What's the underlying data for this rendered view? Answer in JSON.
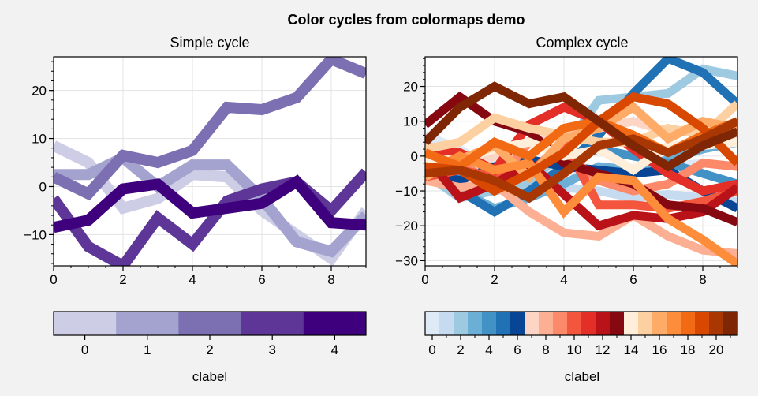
{
  "figure": {
    "suptitle": "Color cycles from colormaps demo",
    "background": "#f2f2f2"
  },
  "chart_data": [
    {
      "type": "line",
      "title": "Simple cycle",
      "xlabel": "",
      "ylabel": "",
      "xlim": [
        0,
        9
      ],
      "ylim": [
        -16.5,
        27
      ],
      "xticks": [
        0,
        2,
        4,
        6,
        8
      ],
      "yticks": [
        -10,
        0,
        10,
        20
      ],
      "ytick_labels": [
        "−10",
        "0",
        "10",
        "20"
      ],
      "grid": true,
      "x": [
        0,
        1,
        2,
        3,
        4,
        5,
        6,
        7,
        8,
        9
      ],
      "series": [
        {
          "color": "#cdcde5",
          "values": [
            8.5,
            5,
            -4.5,
            -2.5,
            2.5,
            2,
            -5,
            -10,
            -15,
            -5
          ]
        },
        {
          "color": "#a4a2cf",
          "values": [
            2.5,
            2.5,
            6,
            0,
            4.5,
            4.5,
            -2.5,
            -11.5,
            -13.5,
            -6
          ]
        },
        {
          "color": "#7c70b3",
          "values": [
            2,
            -1.5,
            6.5,
            5,
            7.5,
            16.5,
            16,
            18.5,
            26.5,
            23.5
          ]
        },
        {
          "color": "#5e3698",
          "values": [
            -2.5,
            -12.5,
            -16.5,
            -6.5,
            -12,
            -3,
            -0.5,
            1,
            -5,
            3
          ]
        },
        {
          "color": "#3f007d",
          "values": [
            -8.5,
            -7,
            -0.5,
            0.5,
            -5.5,
            -4.5,
            -3.5,
            1,
            -7.5,
            -8
          ]
        }
      ],
      "colorbar": {
        "label": "clabel",
        "ticks": [
          "0",
          "1",
          "2",
          "3",
          "4"
        ],
        "colors": [
          "#cdcde5",
          "#a4a2cf",
          "#7c70b3",
          "#5e3698",
          "#3f007d"
        ]
      }
    },
    {
      "type": "line",
      "title": "Complex cycle",
      "xlabel": "",
      "ylabel": "",
      "xlim": [
        0,
        9
      ],
      "ylim": [
        -31.5,
        28.5
      ],
      "xticks": [
        0,
        2,
        4,
        6,
        8
      ],
      "yticks": [
        -30,
        -20,
        -10,
        0,
        10,
        20
      ],
      "ytick_labels": [
        "−30",
        "−20",
        "−10",
        "0",
        "10",
        "20"
      ],
      "grid": true,
      "x": [
        0,
        1,
        2,
        3,
        4,
        5,
        6,
        7,
        8,
        9
      ],
      "series": [
        {
          "color": "#deebf7",
          "values": [
            6,
            2,
            -4,
            -6,
            -4,
            -6,
            -5,
            -3,
            -2,
            -3
          ]
        },
        {
          "color": "#c6dbef",
          "values": [
            3,
            1,
            -3,
            -5,
            -9,
            -10,
            -12,
            -11,
            -12,
            -13
          ]
        },
        {
          "color": "#9ecae1",
          "values": [
            -5,
            -12,
            -10,
            -8,
            2,
            16,
            17,
            18,
            25,
            23
          ]
        },
        {
          "color": "#6baed6",
          "values": [
            -2,
            -10,
            -15,
            -12,
            -8,
            -3,
            -4,
            -1,
            2,
            4
          ]
        },
        {
          "color": "#4292c6",
          "values": [
            -4,
            -5,
            -7,
            -3,
            -1,
            2,
            0,
            -2,
            -5,
            -8
          ]
        },
        {
          "color": "#2171b5",
          "values": [
            0,
            -10,
            -16,
            -10,
            -3,
            6,
            18,
            28,
            24,
            15
          ]
        },
        {
          "color": "#084594",
          "values": [
            -5,
            -7,
            -3,
            -1,
            -3,
            -4,
            -5,
            -4,
            -10,
            -15
          ]
        },
        {
          "color": "#fdd5c4",
          "values": [
            -7,
            -3,
            0,
            4,
            6,
            8,
            10,
            7,
            8,
            5
          ]
        },
        {
          "color": "#fcaf93",
          "values": [
            -7,
            -9,
            -8,
            -16,
            -22,
            -23,
            -17,
            -23,
            -27,
            -28
          ]
        },
        {
          "color": "#fc8a6a",
          "values": [
            -3,
            -2,
            -8,
            4,
            1,
            -7,
            -10,
            -8,
            -2,
            -3
          ]
        },
        {
          "color": "#f4553d",
          "values": [
            -6,
            -4,
            -6,
            -5,
            4,
            -14,
            -14,
            -15,
            -13,
            -10
          ]
        },
        {
          "color": "#e32f27",
          "values": [
            2,
            1,
            -4,
            9,
            14,
            10,
            2,
            -5,
            -10,
            -8
          ]
        },
        {
          "color": "#b91319",
          "values": [
            0,
            -12,
            -8,
            -2,
            -11,
            -20,
            -17,
            -18,
            -16,
            -9
          ]
        },
        {
          "color": "#860811",
          "values": [
            9,
            17,
            10,
            7,
            -2,
            -5,
            -8,
            -14,
            -15,
            -19
          ]
        },
        {
          "color": "#feeeda",
          "values": [
            -1,
            -1,
            2,
            4,
            0,
            2,
            -4,
            3,
            3,
            4
          ]
        },
        {
          "color": "#fdd0a2",
          "values": [
            2,
            4,
            11,
            8,
            6,
            4,
            4,
            8,
            6,
            15
          ]
        },
        {
          "color": "#fdab67",
          "values": [
            -6,
            -1,
            3,
            -6,
            5,
            8,
            14,
            5,
            10,
            8
          ]
        },
        {
          "color": "#fd8c3b",
          "values": [
            -5,
            0,
            -4,
            -2,
            -16,
            -6,
            -7,
            -18,
            -24,
            -31
          ]
        },
        {
          "color": "#f26a14",
          "values": [
            1,
            -3,
            4,
            0,
            8,
            10,
            6,
            1,
            6,
            10
          ]
        },
        {
          "color": "#d84801",
          "values": [
            -3,
            -4,
            -10,
            -5,
            1,
            10,
            17,
            15,
            8,
            -2
          ]
        },
        {
          "color": "#a93703",
          "values": [
            -5,
            -4,
            -7,
            -12,
            -5,
            3,
            5,
            1,
            5,
            10
          ]
        },
        {
          "color": "#7f2704",
          "values": [
            4,
            14,
            20,
            15,
            17,
            10,
            3,
            -3,
            3,
            7
          ]
        }
      ],
      "colorbar": {
        "label": "clabel",
        "ticks": [
          "0",
          "2",
          "4",
          "6",
          "8",
          "10",
          "12",
          "14",
          "16",
          "18",
          "20"
        ],
        "colors": [
          "#deebf7",
          "#c6dbef",
          "#9ecae1",
          "#6baed6",
          "#4292c6",
          "#2171b5",
          "#084594",
          "#fdd5c4",
          "#fcaf93",
          "#fc8a6a",
          "#f4553d",
          "#e32f27",
          "#b91319",
          "#860811",
          "#feeeda",
          "#fdd0a2",
          "#fdab67",
          "#fd8c3b",
          "#f26a14",
          "#d84801",
          "#a93703",
          "#7f2704"
        ]
      }
    }
  ]
}
